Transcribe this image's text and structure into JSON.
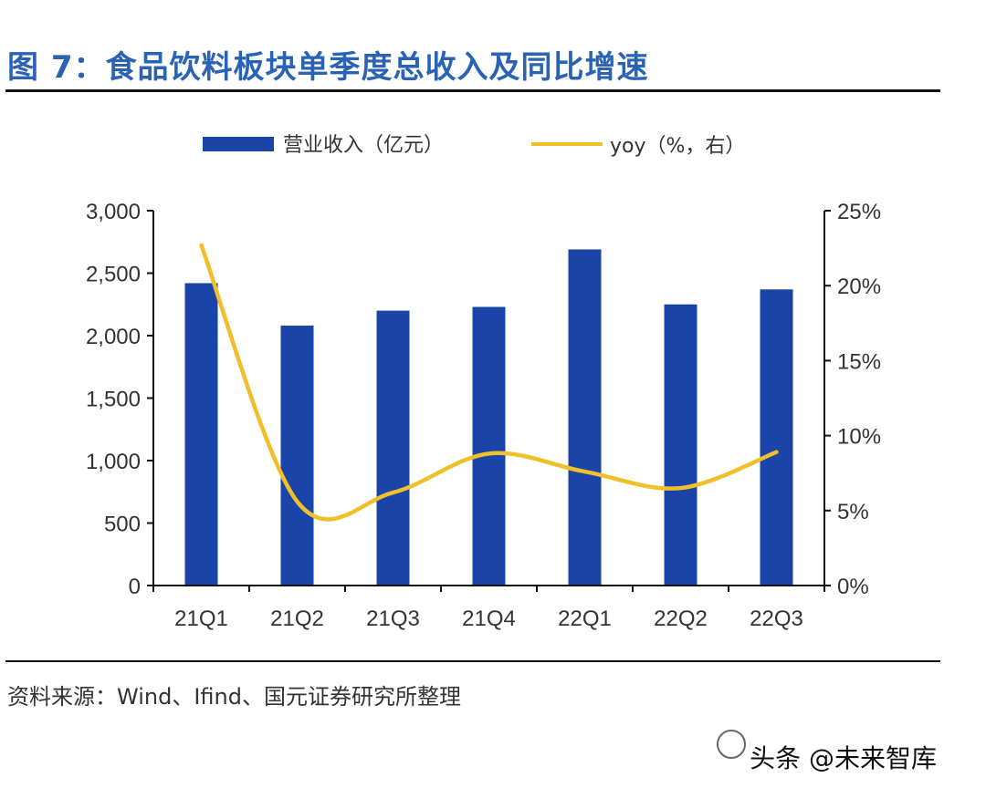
{
  "figure": {
    "title": "图 7：食品饮料板块单季度总收入及同比增速",
    "source": "资料来源：Wind、Ifind、国元证券研究所整理",
    "watermark": "头条 @未来智库"
  },
  "colors": {
    "bar": "#1a44a8",
    "line": "#f0bf2a",
    "axis": "#111111",
    "text": "#333333"
  },
  "chart_data": {
    "type": "bar",
    "categories": [
      "21Q1",
      "21Q2",
      "21Q3",
      "21Q4",
      "22Q1",
      "22Q2",
      "22Q3"
    ],
    "series": [
      {
        "name": "营业收入（亿元）",
        "type": "bar",
        "axis": "left",
        "values": [
          2420,
          2080,
          2200,
          2230,
          2690,
          2250,
          2370
        ]
      },
      {
        "name": "yoy（%，右）",
        "type": "line",
        "axis": "right",
        "values": [
          22.7,
          5.6,
          6.2,
          8.8,
          7.6,
          6.5,
          8.9
        ]
      }
    ],
    "yleft": {
      "min": 0,
      "max": 3000,
      "ticks": [
        0,
        500,
        1000,
        1500,
        2000,
        2500,
        3000
      ],
      "tick_labels": [
        "0",
        "500",
        "1,000",
        "1,500",
        "2,000",
        "2,500",
        "3,000"
      ]
    },
    "yright": {
      "min": 0,
      "max": 25,
      "ticks": [
        0,
        5,
        10,
        15,
        20,
        25
      ],
      "tick_labels": [
        "0%",
        "5%",
        "10%",
        "15%",
        "20%",
        "25%"
      ]
    },
    "legend": {
      "position": "top"
    }
  }
}
